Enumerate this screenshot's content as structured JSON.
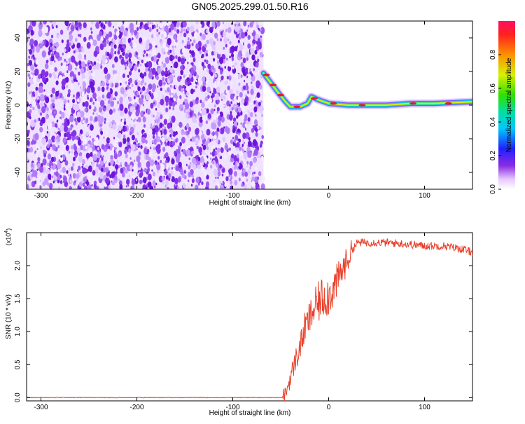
{
  "page_title": "GN05.2025.299.01.50.R16",
  "colors": {
    "snr_line": "#e8402a",
    "noise_purple": "#7a2be6",
    "track_core": "#e8192c"
  },
  "chart_data": [
    {
      "type": "heatmap",
      "xlabel": "Height of straight line (km)",
      "ylabel": "Frequency (Hz)",
      "xlim": [
        -315,
        150
      ],
      "ylim": [
        -50,
        50
      ],
      "xticks": [
        -300,
        -200,
        -100,
        0,
        100
      ],
      "yticks": [
        -40,
        -20,
        0,
        20,
        40
      ],
      "colorbar": {
        "label": "Normalized spectral amplitude",
        "range": [
          0,
          1
        ],
        "ticks": [
          0.0,
          0.2,
          0.4,
          0.6,
          0.8
        ]
      },
      "noise_region_x": [
        -315,
        -68
      ],
      "track": [
        {
          "x": -68,
          "y": 19
        },
        {
          "x": -60,
          "y": 13
        },
        {
          "x": -52,
          "y": 7
        },
        {
          "x": -45,
          "y": 2
        },
        {
          "x": -40,
          "y": -1
        },
        {
          "x": -30,
          "y": -1
        },
        {
          "x": -22,
          "y": 1
        },
        {
          "x": -18,
          "y": 5
        },
        {
          "x": -10,
          "y": 3
        },
        {
          "x": 0,
          "y": 1
        },
        {
          "x": 20,
          "y": 0
        },
        {
          "x": 60,
          "y": 0
        },
        {
          "x": 85,
          "y": 1
        },
        {
          "x": 110,
          "y": 1
        },
        {
          "x": 150,
          "y": 2
        }
      ]
    },
    {
      "type": "line",
      "xlabel": "Height of straight line (km)",
      "ylabel": "SNR (10 * v/v)",
      "y_multiplier": "(x10",
      "y_multiplier_exp": "4",
      "xlim": [
        -315,
        150
      ],
      "ylim": [
        -0.05,
        2.5
      ],
      "xticks": [
        -300,
        -200,
        -100,
        0,
        100
      ],
      "yticks": [
        0.0,
        0.5,
        1.0,
        1.5,
        2.0
      ],
      "series": [
        {
          "values": [
            [
              -315,
              0.0
            ],
            [
              -50,
              0.0
            ],
            [
              -45,
              0.05
            ],
            [
              -40,
              0.3
            ],
            [
              -35,
              0.55
            ],
            [
              -30,
              0.75
            ],
            [
              -25,
              1.05
            ],
            [
              -20,
              1.2
            ],
            [
              -15,
              1.35
            ],
            [
              -10,
              1.45
            ],
            [
              -5,
              1.55
            ],
            [
              0,
              1.55
            ],
            [
              5,
              1.65
            ],
            [
              10,
              1.8
            ],
            [
              15,
              1.95
            ],
            [
              20,
              2.1
            ],
            [
              25,
              2.25
            ],
            [
              30,
              2.35
            ],
            [
              40,
              2.35
            ],
            [
              60,
              2.35
            ],
            [
              80,
              2.33
            ],
            [
              100,
              2.3
            ],
            [
              120,
              2.3
            ],
            [
              140,
              2.25
            ],
            [
              150,
              2.2
            ]
          ]
        }
      ]
    }
  ]
}
